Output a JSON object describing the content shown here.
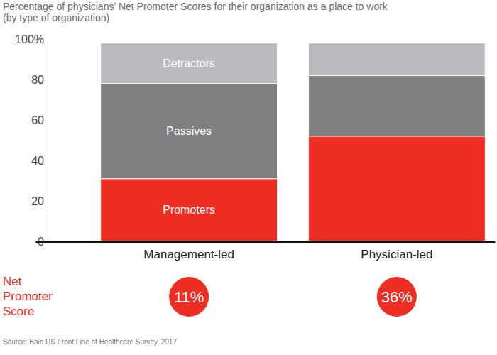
{
  "chart_data": {
    "type": "bar",
    "stacked": true,
    "title": "Percentage of physicians’ Net Promoter Scores for their organization as a place to work",
    "subtitle": "(by type of organization)",
    "categories": [
      "Management-led",
      "Physician-led"
    ],
    "series": [
      {
        "name": "Promoters",
        "color": "#ee2e24",
        "values": [
          31,
          52
        ]
      },
      {
        "name": "Passives",
        "color": "#808083",
        "values": [
          47,
          30
        ]
      },
      {
        "name": "Detractors",
        "color": "#bbbbbf",
        "values": [
          20,
          16
        ]
      }
    ],
    "ylim": [
      0,
      100
    ],
    "yticks": [
      0,
      20,
      40,
      60,
      80,
      {
        "value": 100,
        "label": "100%"
      }
    ],
    "grid": false,
    "net_promoter_score": {
      "label": "Net Promoter Score",
      "values": [
        11,
        36
      ],
      "value_labels": [
        "11%",
        "36%"
      ]
    },
    "source": "Source: Bain US Front Line of Healthcare Survey, 2017"
  }
}
